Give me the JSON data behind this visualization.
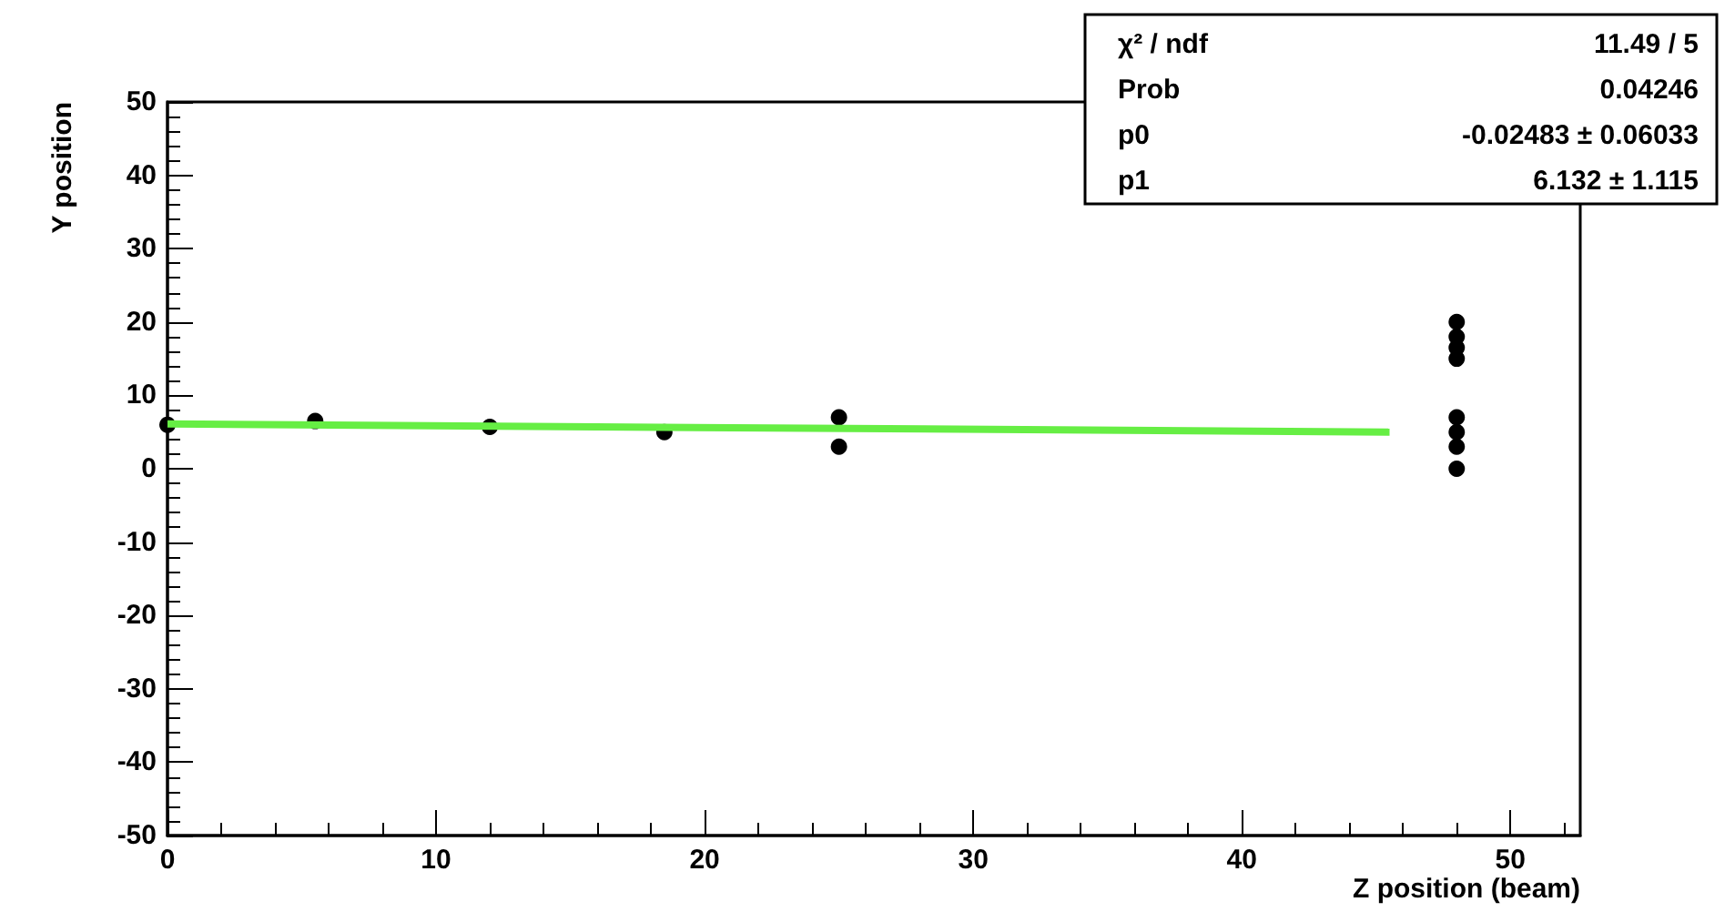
{
  "chart_data": {
    "type": "scatter",
    "xlabel": "Z position (beam)",
    "ylabel": "Y position",
    "xlim": [
      0,
      52.6
    ],
    "xticks": [
      0,
      10,
      20,
      30,
      40,
      50
    ],
    "ylim": [
      -50,
      50
    ],
    "yticks": [
      -50,
      -40,
      -30,
      -20,
      -10,
      0,
      10,
      20,
      30,
      40,
      50
    ],
    "series": [
      {
        "color": "#000000",
        "marker": "circle",
        "x": [
          0,
          5.5,
          12,
          18.5,
          25,
          25,
          48,
          48,
          48,
          48,
          48,
          48,
          48,
          48
        ],
        "values": [
          6,
          6.5,
          5.7,
          5,
          7,
          3,
          20,
          18,
          16.5,
          15,
          7,
          5,
          3,
          0
        ]
      },
      {
        "type": "line",
        "color": "#66ee44",
        "marker": "none",
        "x": [
          0,
          45.5
        ],
        "values": [
          6.1,
          5.0
        ]
      }
    ],
    "annotations": [
      "χ² / ndf",
      "11.49 / 5",
      "Prob",
      "0.04246",
      "p0",
      "-0.02483 ± 0.06033",
      "p1",
      "6.132 ± 1.115"
    ],
    "grid": false
  }
}
